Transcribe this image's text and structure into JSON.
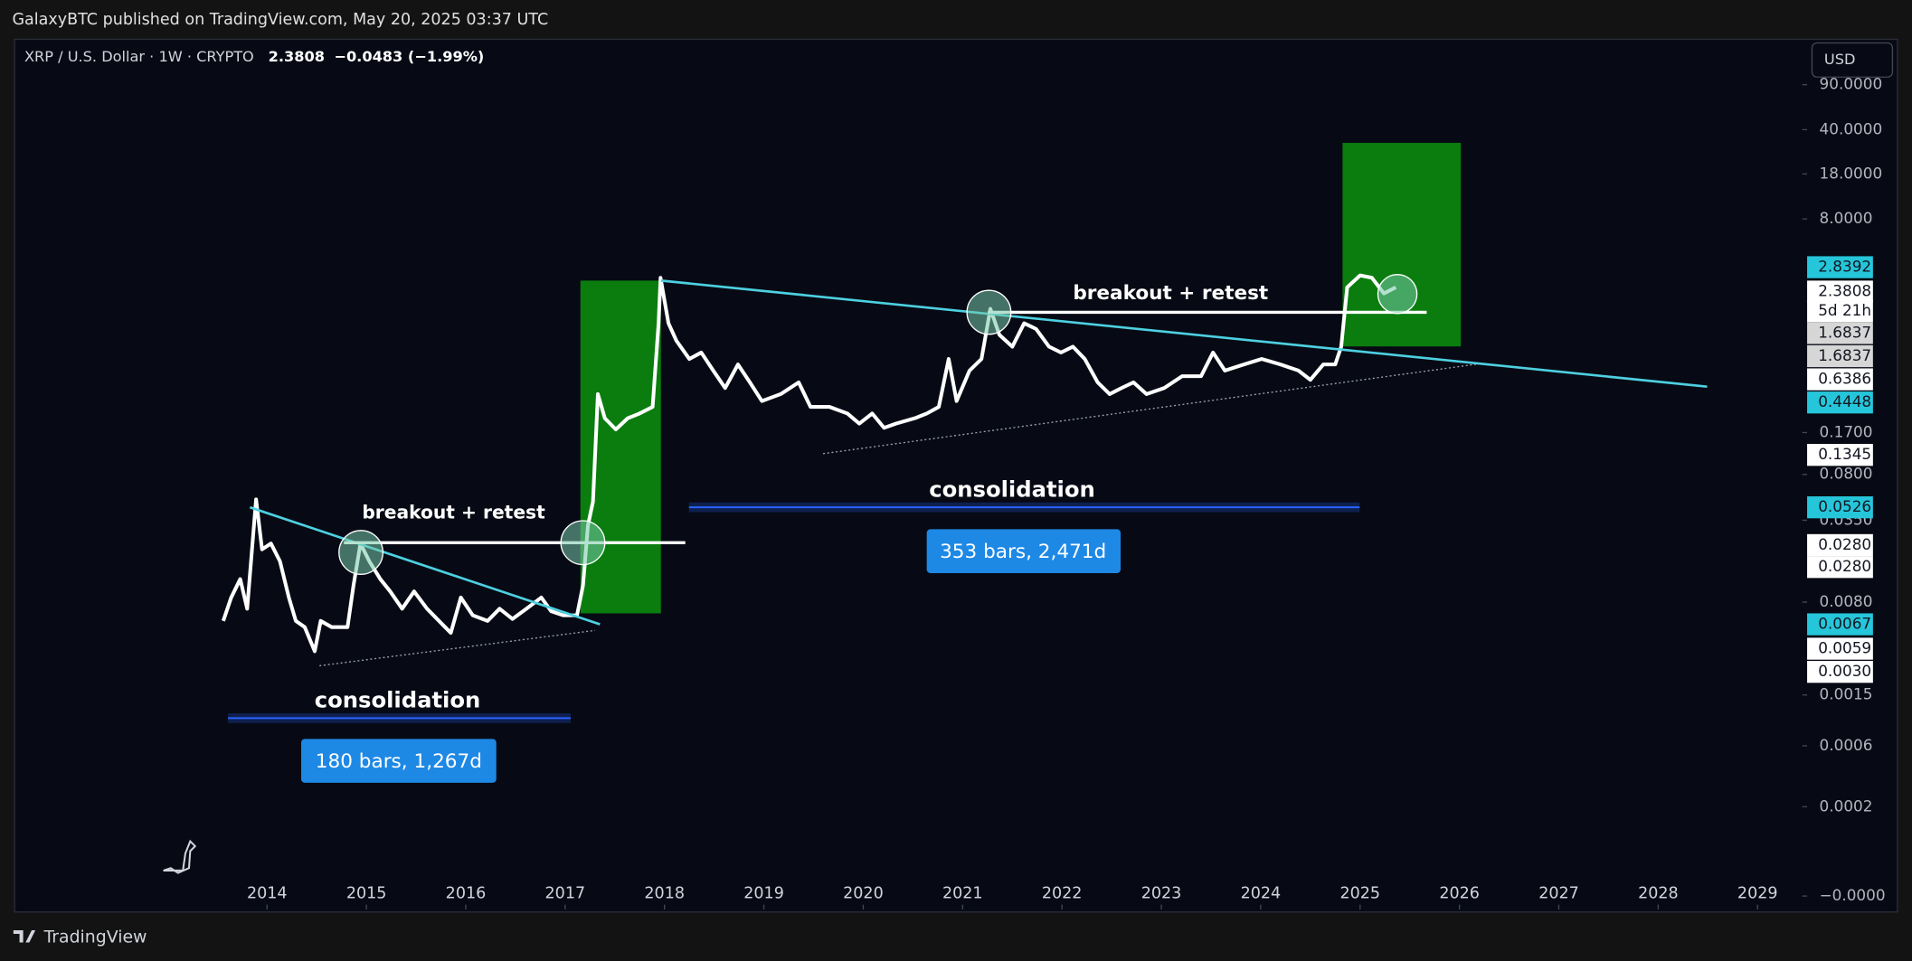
{
  "header": {
    "publisher": "GalaxyBTC published on TradingView.com, May 20, 2025 03:37 UTC",
    "brand": "TradingView"
  },
  "chart_data": {
    "type": "line",
    "symbol": "XRP / U.S. Dollar · 1W · CRYPTO",
    "last_price": "2.3808",
    "change": "−0.0483 (−1.99%)",
    "currency": "USD",
    "log_scale": true,
    "x": [
      2013.56,
      2013.64,
      2013.73,
      2013.8,
      2013.89,
      2013.95,
      2014.04,
      2014.13,
      2014.22,
      2014.29,
      2014.38,
      2014.48,
      2014.54,
      2014.65,
      2014.81,
      2014.87,
      2014.94,
      2015.03,
      2015.14,
      2015.24,
      2015.36,
      2015.48,
      2015.61,
      2015.73,
      2015.85,
      2015.95,
      2016.07,
      2016.22,
      2016.34,
      2016.47,
      2016.61,
      2016.76,
      2016.86,
      2016.98,
      2017.12,
      2017.18,
      2017.23,
      2017.28,
      2017.33,
      2017.4,
      2017.51,
      2017.63,
      2017.75,
      2017.88,
      2017.94,
      2017.96,
      2018.04,
      2018.12,
      2018.25,
      2018.37,
      2018.49,
      2018.61,
      2018.74,
      2018.86,
      2018.98,
      2019.17,
      2019.35,
      2019.47,
      2019.66,
      2019.84,
      2019.96,
      2020.09,
      2020.21,
      2020.33,
      2020.52,
      2020.64,
      2020.76,
      2020.86,
      2020.94,
      2021.07,
      2021.19,
      2021.28,
      2021.37,
      2021.5,
      2021.62,
      2021.74,
      2021.87,
      2021.99,
      2022.11,
      2022.23,
      2022.36,
      2022.48,
      2022.6,
      2022.72,
      2022.85,
      2023.03,
      2023.21,
      2023.4,
      2023.52,
      2023.64,
      2023.83,
      2024.01,
      2024.2,
      2024.38,
      2024.5,
      2024.63,
      2024.75,
      2024.81,
      2024.87,
      2025.0,
      2025.12,
      2025.24,
      2025.36
    ],
    "series": [
      {
        "name": "XRP",
        "color": "#ffffff",
        "values": [
          0.0057,
          0.0087,
          0.0121,
          0.0071,
          0.051,
          0.0207,
          0.023,
          0.0167,
          0.0087,
          0.0057,
          0.0051,
          0.0033,
          0.0057,
          0.0051,
          0.0051,
          0.0108,
          0.023,
          0.0167,
          0.0121,
          0.0097,
          0.0071,
          0.0097,
          0.0071,
          0.0057,
          0.0046,
          0.0087,
          0.0063,
          0.0057,
          0.0071,
          0.0059,
          0.0071,
          0.0087,
          0.0068,
          0.0063,
          0.0063,
          0.0108,
          0.032,
          0.049,
          0.34,
          0.22,
          0.18,
          0.22,
          0.24,
          0.27,
          1.22,
          2.77,
          1.22,
          0.89,
          0.64,
          0.72,
          0.52,
          0.38,
          0.58,
          0.42,
          0.3,
          0.34,
          0.42,
          0.27,
          0.27,
          0.24,
          0.2,
          0.24,
          0.185,
          0.2,
          0.22,
          0.24,
          0.27,
          0.64,
          0.3,
          0.52,
          0.64,
          1.58,
          0.99,
          0.8,
          1.22,
          1.1,
          0.8,
          0.72,
          0.8,
          0.64,
          0.42,
          0.34,
          0.38,
          0.42,
          0.34,
          0.38,
          0.47,
          0.47,
          0.72,
          0.52,
          0.58,
          0.64,
          0.58,
          0.52,
          0.44,
          0.58,
          0.58,
          0.8,
          2.33,
          2.89,
          2.77,
          2.09,
          2.33
        ]
      }
    ],
    "xlim": [
      2011.46,
      2029.45
    ],
    "xticks": [
      2014,
      2015,
      2016,
      2017,
      2018,
      2019,
      2020,
      2021,
      2022,
      2023,
      2024,
      2025,
      2026,
      2027,
      2028,
      2029
    ],
    "ylim": [
      3e-05,
      204
    ],
    "yticks": [
      {
        "value": 90,
        "label": "90.0000"
      },
      {
        "value": 40,
        "label": "40.0000"
      },
      {
        "value": 18,
        "label": "18.0000"
      },
      {
        "value": 8,
        "label": "8.0000"
      },
      {
        "value": 0.17,
        "label": "0.1700"
      },
      {
        "value": 0.08,
        "label": "0.0800"
      },
      {
        "value": 0.035,
        "label": "0.0350"
      },
      {
        "value": 0.008,
        "label": "0.0080"
      },
      {
        "value": 0.0015,
        "label": "0.0015"
      },
      {
        "value": 0.0006,
        "label": "0.0006"
      },
      {
        "value": 0.0002,
        "label": "0.0002"
      },
      {
        "value": 4e-05,
        "label": "−0.0000"
      }
    ],
    "price_badges": [
      {
        "label": "2.8392",
        "color": "#26c6da"
      },
      {
        "label": "2.3808",
        "color": "#ffffff"
      },
      {
        "label": "5d 21h",
        "color": "#ffffff"
      },
      {
        "label": "1.6837",
        "color": "#d6d6d6"
      },
      {
        "label": "1.6837",
        "color": "#d6d6d6"
      },
      {
        "label": "0.6386",
        "color": "#ffffff"
      },
      {
        "label": "0.4448",
        "color": "#26c6da"
      },
      {
        "label": "0.1345",
        "color": "#ffffff"
      },
      {
        "label": "0.0526",
        "color": "#26c6da"
      },
      {
        "label": "0.0280",
        "color": "#ffffff"
      },
      {
        "label": "0.0280",
        "color": "#ffffff"
      },
      {
        "label": "0.0067",
        "color": "#26c6da"
      },
      {
        "label": "0.0059",
        "color": "#ffffff"
      },
      {
        "label": "0.0030",
        "color": "#ffffff"
      }
    ],
    "annotations": {
      "retest_1": "breakout + retest",
      "retest_2": "breakout + retest",
      "consolidation_1": "consolidation",
      "consolidation_2": "consolidation",
      "range_1": "180 bars, 1,267d",
      "range_2": "353 bars, 2,471d"
    }
  }
}
